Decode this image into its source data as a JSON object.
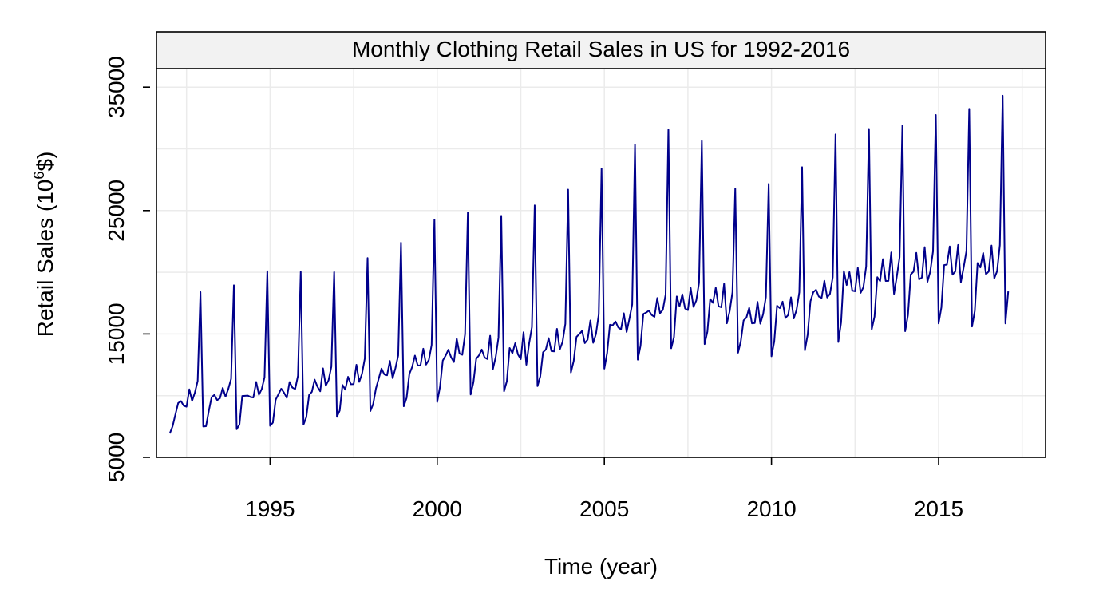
{
  "chart_data": {
    "type": "line",
    "title": "Monthly Clothing Retail Sales in US for 1992-2016",
    "xlabel": "Time (year)",
    "ylabel": {
      "prefix": "Retail Sales (10",
      "exponent": "6",
      "suffix": "$)"
    },
    "xlim": [
      1991.6,
      2018.2
    ],
    "ylim": [
      5000,
      36500
    ],
    "x_ticks": [
      1995,
      2000,
      2005,
      2010,
      2015
    ],
    "y_ticks": [
      5000,
      15000,
      25000,
      35000
    ],
    "grid": true,
    "colors": {
      "line": "#00008b",
      "grid": "#ebebeb",
      "strip": "#f2f2f2",
      "frame": "#000000"
    },
    "series": [
      {
        "name": "Monthly clothing retail sales",
        "start_year": 1992,
        "frequency": 12,
        "values": [
          6938,
          7524,
          8475,
          9401,
          9558,
          9182,
          9103,
          10513,
          9573,
          10254,
          11187,
          18395,
          7502,
          7524,
          8766,
          9867,
          10063,
          9635,
          9794,
          10628,
          9919,
          10548,
          11357,
          18946,
          7281,
          7658,
          9970,
          9987,
          10004,
          9882,
          9854,
          11111,
          10078,
          10535,
          11482,
          20091,
          7554,
          7813,
          9669,
          10112,
          10562,
          10243,
          9823,
          11106,
          10651,
          10539,
          11612,
          20038,
          7657,
          8250,
          10050,
          10313,
          11301,
          10725,
          10352,
          12212,
          10809,
          11256,
          12346,
          20014,
          8285,
          8791,
          10866,
          10492,
          11530,
          10924,
          10934,
          12503,
          11116,
          11762,
          13000,
          21155,
          8751,
          9316,
          10574,
          11378,
          12196,
          11727,
          11650,
          12809,
          11418,
          12228,
          13262,
          22400,
          9136,
          9804,
          11761,
          12321,
          13246,
          12451,
          12446,
          13802,
          12518,
          12895,
          14112,
          24274,
          9491,
          10710,
          12843,
          13236,
          13722,
          13109,
          12725,
          14623,
          13415,
          13315,
          14987,
          24860,
          10092,
          11079,
          12991,
          13265,
          13734,
          13096,
          12970,
          14859,
          12154,
          13136,
          14713,
          24574,
          10355,
          11174,
          13863,
          13436,
          14249,
          13337,
          12959,
          15141,
          12505,
          14228,
          15552,
          25421,
          10769,
          11554,
          13520,
          13739,
          14661,
          13607,
          13587,
          15412,
          13739,
          14350,
          15819,
          26697,
          11877,
          12813,
          14760,
          14987,
          15246,
          14260,
          14543,
          16091,
          14282,
          15000,
          16596,
          28405,
          12190,
          13450,
          15744,
          15701,
          16012,
          15526,
          15373,
          16677,
          15159,
          16227,
          17392,
          30343,
          12913,
          14043,
          16617,
          16729,
          16891,
          16538,
          16387,
          17910,
          16681,
          16948,
          18189,
          31562,
          13839,
          14742,
          18045,
          17237,
          18211,
          17062,
          16929,
          18731,
          17197,
          17708,
          19145,
          30645,
          14177,
          15189,
          17831,
          17519,
          18749,
          17237,
          17162,
          19070,
          15862,
          16849,
          18391,
          26779,
          13479,
          14419,
          16098,
          16321,
          17117,
          15856,
          15883,
          17598,
          15830,
          16601,
          18003,
          27158,
          13188,
          14392,
          17289,
          17094,
          17615,
          16295,
          16531,
          17969,
          16254,
          16945,
          18382,
          28519,
          13673,
          14951,
          17651,
          18384,
          18580,
          18031,
          17926,
          19310,
          17952,
          18249,
          19602,
          31175,
          14344,
          15941,
          20094,
          18965,
          20015,
          18510,
          18458,
          20362,
          18331,
          18783,
          20476,
          31620,
          15376,
          16402,
          19599,
          19283,
          21067,
          19293,
          19300,
          21607,
          18247,
          19652,
          21220,
          31894,
          15220,
          16524,
          19820,
          20049,
          21574,
          19423,
          19571,
          22035,
          19227,
          20047,
          21697,
          32752,
          15853,
          17139,
          20585,
          20622,
          22090,
          19805,
          20068,
          22211,
          19195,
          20392,
          21722,
          33240,
          15598,
          16855,
          20751,
          20389,
          21557,
          19841,
          20061,
          22168,
          19502,
          20088,
          22207,
          34312,
          15853,
          18451
        ]
      }
    ]
  }
}
